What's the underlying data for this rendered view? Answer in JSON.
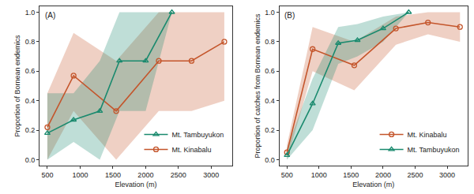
{
  "chart_data": [
    {
      "type": "line",
      "annotation": "(A)",
      "x_label": "Elevation (m)",
      "y_label": "Proportion of Bornean endemics",
      "xlim": [
        380,
        3320
      ],
      "xticks": [
        500,
        1000,
        1500,
        2000,
        2500,
        3000
      ],
      "ylim": [
        -0.04,
        1.04
      ],
      "yticks": [
        {
          "value": 0,
          "label": "0.0"
        },
        {
          "value": 0.2,
          "label": "0.2"
        },
        {
          "value": 0.4,
          "label": "0.4"
        },
        {
          "value": 0.6,
          "label": "0.6"
        },
        {
          "value": 0.8,
          "label": "0.8"
        },
        {
          "value": 1,
          "label": "1.0"
        }
      ],
      "grid": false,
      "legend": "lower right",
      "series": [
        {
          "name": "Mt. Kinabalu",
          "color": "#c4552b",
          "marker": "circle",
          "x": [
            500,
            900,
            1550,
            2200,
            2700,
            3200
          ],
          "values": [
            0.22,
            0.57,
            0.33,
            0.67,
            0.67,
            0.8
          ],
          "lower": [
            0,
            0.33,
            0,
            0.33,
            0.33,
            0.4
          ],
          "upper": [
            0.45,
            0.86,
            0.67,
            1,
            1,
            1
          ]
        },
        {
          "name": "Mt. Tambuyukon",
          "color": "#1a8a6e",
          "marker": "triangle-up",
          "x": [
            500,
            900,
            1300,
            1600,
            2000,
            2400
          ],
          "values": [
            0.18,
            0.27,
            0.33,
            0.67,
            0.67,
            1
          ],
          "lower": [
            0,
            0.12,
            0,
            0.33,
            0.33,
            1
          ],
          "upper": [
            0.45,
            0.45,
            0.67,
            1,
            1,
            1
          ]
        }
      ]
    },
    {
      "type": "line",
      "annotation": "(B)",
      "x_label": "Elevation (m)",
      "y_label": "Proportion of catches from Bornean endemics",
      "xlim": [
        380,
        3320
      ],
      "xticks": [
        500,
        1000,
        1500,
        2000,
        2500,
        3000
      ],
      "ylim": [
        -0.04,
        1.04
      ],
      "yticks": [
        {
          "value": 0,
          "label": "0.0"
        },
        {
          "value": 0.2,
          "label": "0.2"
        },
        {
          "value": 0.4,
          "label": "0.4"
        },
        {
          "value": 0.6,
          "label": "0.6"
        },
        {
          "value": 0.8,
          "label": "0.8"
        },
        {
          "value": 1,
          "label": "1.0"
        }
      ],
      "grid": false,
      "legend": "lower right",
      "series": [
        {
          "name": "Mt. Kinabalu",
          "color": "#c4552b",
          "marker": "circle",
          "x": [
            500,
            900,
            1550,
            2200,
            2700,
            3200
          ],
          "values": [
            0.05,
            0.75,
            0.64,
            0.89,
            0.93,
            0.9
          ],
          "lower": [
            0,
            0.6,
            0.47,
            0.78,
            0.85,
            0.8
          ],
          "upper": [
            0.1,
            0.9,
            0.8,
            0.97,
            1,
            1
          ]
        },
        {
          "name": "Mt. Tambuyukon",
          "color": "#1a8a6e",
          "marker": "triangle-up",
          "x": [
            500,
            900,
            1300,
            1600,
            2000,
            2400
          ],
          "values": [
            0.03,
            0.38,
            0.79,
            0.81,
            0.89,
            1
          ],
          "lower": [
            0,
            0.2,
            0.65,
            0.7,
            0.8,
            1
          ],
          "upper": [
            0.08,
            0.55,
            0.9,
            0.92,
            0.97,
            1
          ]
        }
      ]
    }
  ]
}
